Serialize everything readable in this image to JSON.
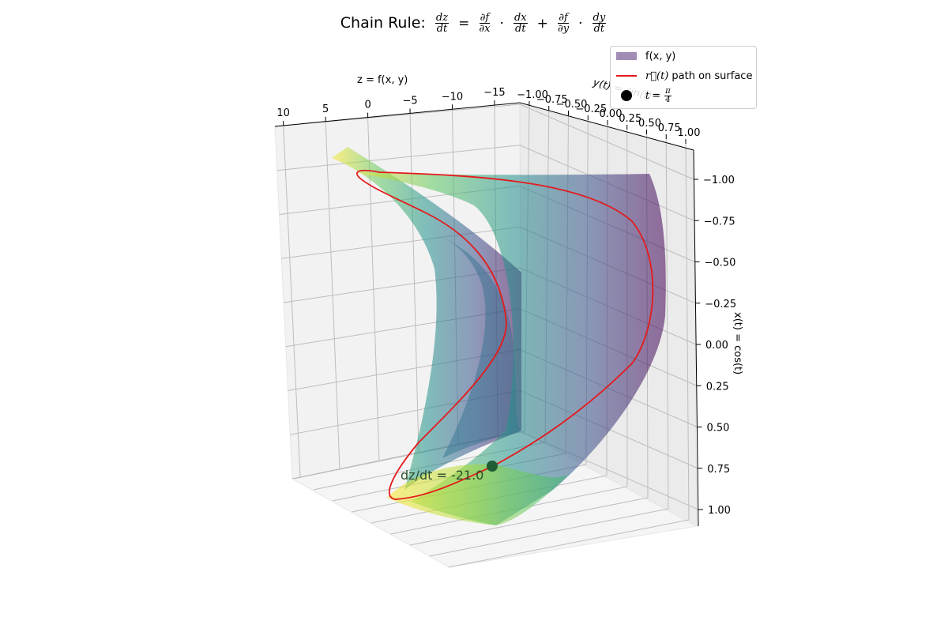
{
  "chart_data": {
    "type": "surface3d",
    "title": "Chain Rule:",
    "title_formula": {
      "lhs_num": "dz",
      "lhs_den": "dt",
      "eq": "=",
      "t1_num": "∂f",
      "t1_den": "∂x",
      "t2_num": "dx",
      "t2_den": "dt",
      "plus": "+",
      "t3_num": "∂f",
      "t3_den": "∂y",
      "t4_num": "dy",
      "t4_den": "dt",
      "dot": "·"
    },
    "zlabel": "z = f(x, y)",
    "ylabel": "y(t) = sin(t)",
    "xlabel": "x(t) = cos(t)",
    "z_ticks": [
      "10",
      "5",
      "0",
      "−5",
      "−10",
      "−15"
    ],
    "y_ticks": [
      "−1.00",
      "−0.75",
      "−0.50",
      "−0.25",
      "0.00",
      "0.25",
      "0.50",
      "0.75",
      "1.00"
    ],
    "x_ticks": [
      "−1.00",
      "−0.75",
      "−0.50",
      "−0.25",
      "0.00",
      "0.25",
      "0.50",
      "0.75",
      "1.00"
    ],
    "zlim": [
      -18,
      11
    ],
    "ylim": [
      -1,
      1
    ],
    "xlim": [
      -1,
      1
    ],
    "surface_colormap": "viridis",
    "surface_alpha": 0.55,
    "path_color": "#e41a1c",
    "point": {
      "t": "π/4",
      "color": "#1f5c34"
    },
    "annotation": "dz/dt = -21.0",
    "legend": {
      "position": "top-right",
      "entries": [
        {
          "label": "f(x, y)",
          "kind": "patch",
          "color": "#a28cb4"
        },
        {
          "label": "path on surface",
          "kind": "line",
          "color": "#e41a1c",
          "math": "r⃗(t)"
        },
        {
          "label": "t = π/4",
          "kind": "dot",
          "color": "#000000",
          "math_t": "t",
          "math_val_num": "π",
          "math_val_den": "4"
        }
      ]
    },
    "grid": true
  }
}
